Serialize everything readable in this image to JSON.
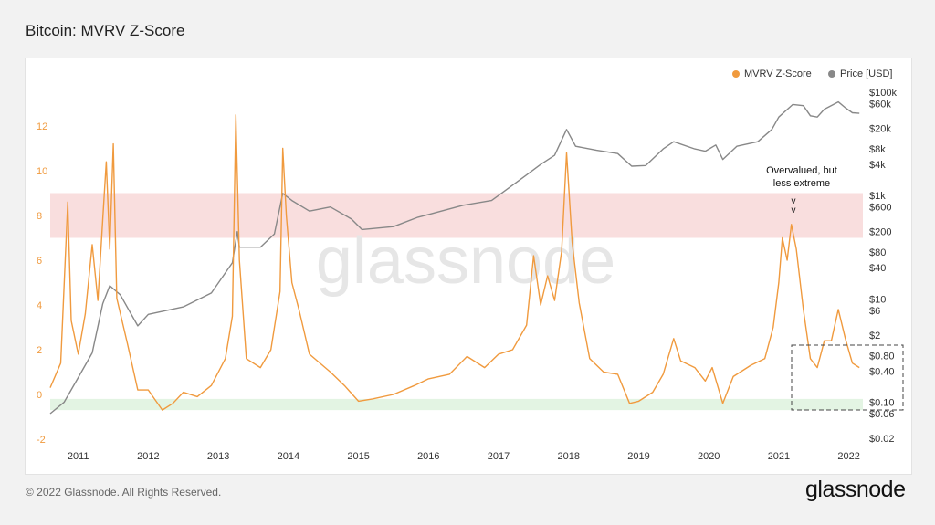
{
  "page": {
    "title": "Bitcoin: MVRV Z-Score",
    "footer": "© 2022 Glassnode. All Rights Reserved.",
    "brand": "glassnode",
    "watermark": "glassnode"
  },
  "colors": {
    "mvrv": "#f09a3e",
    "price": "#888888",
    "red_band": "#f9dede",
    "green_band": "#e3f4e3"
  },
  "chart_data": {
    "type": "line",
    "title": "Bitcoin: MVRV Z-Score",
    "legend_position": "top-right",
    "x_ticks": [
      "2011",
      "2012",
      "2013",
      "2014",
      "2015",
      "2016",
      "2017",
      "2018",
      "2019",
      "2020",
      "2021",
      "2022"
    ],
    "xlim": [
      "2010-08",
      "2022-03"
    ],
    "y_left": {
      "ticks": [
        -2,
        0,
        2,
        4,
        6,
        8,
        10,
        12
      ],
      "lim": [
        -2,
        13
      ]
    },
    "y_right": {
      "scale": "log",
      "ticks": [
        "$100k",
        "$60k",
        "$20k",
        "$8k",
        "$4k",
        "$1k",
        "$600",
        "$200",
        "$80",
        "$40",
        "$10",
        "$6",
        "$2",
        "$0.80",
        "$0.40",
        "$0.10",
        "$0.06",
        "$0.02"
      ]
    },
    "bands": [
      {
        "name": "overvalued",
        "from": 7,
        "to": 9
      },
      {
        "name": "undervalued",
        "from": -0.7,
        "to": -0.2
      }
    ],
    "annotation": {
      "text": [
        "Overvalued, but",
        "less extreme"
      ],
      "x": 2021.3,
      "y": 10.1,
      "arrow": "v v"
    },
    "series": [
      {
        "name": "MVRV Z-Score",
        "axis": "left",
        "points": [
          [
            2010.6,
            0.3
          ],
          [
            2010.75,
            1.4
          ],
          [
            2010.85,
            8.6
          ],
          [
            2010.9,
            3.3
          ],
          [
            2011.0,
            1.8
          ],
          [
            2011.1,
            3.6
          ],
          [
            2011.2,
            6.7
          ],
          [
            2011.28,
            4.2
          ],
          [
            2011.35,
            7.8
          ],
          [
            2011.4,
            10.4
          ],
          [
            2011.45,
            6.5
          ],
          [
            2011.5,
            11.2
          ],
          [
            2011.55,
            4.3
          ],
          [
            2011.7,
            2.3
          ],
          [
            2011.85,
            0.2
          ],
          [
            2012.0,
            0.2
          ],
          [
            2012.2,
            -0.7
          ],
          [
            2012.35,
            -0.4
          ],
          [
            2012.5,
            0.1
          ],
          [
            2012.7,
            -0.1
          ],
          [
            2012.9,
            0.4
          ],
          [
            2013.1,
            1.6
          ],
          [
            2013.2,
            3.5
          ],
          [
            2013.25,
            12.5
          ],
          [
            2013.3,
            6.0
          ],
          [
            2013.4,
            1.6
          ],
          [
            2013.6,
            1.2
          ],
          [
            2013.75,
            2.0
          ],
          [
            2013.88,
            4.6
          ],
          [
            2013.92,
            11.0
          ],
          [
            2013.97,
            8.0
          ],
          [
            2014.05,
            5.0
          ],
          [
            2014.15,
            3.8
          ],
          [
            2014.3,
            1.8
          ],
          [
            2014.6,
            1.0
          ],
          [
            2014.8,
            0.4
          ],
          [
            2015.0,
            -0.3
          ],
          [
            2015.2,
            -0.2
          ],
          [
            2015.5,
            0.0
          ],
          [
            2015.8,
            0.4
          ],
          [
            2016.0,
            0.7
          ],
          [
            2016.3,
            0.9
          ],
          [
            2016.55,
            1.7
          ],
          [
            2016.8,
            1.2
          ],
          [
            2017.0,
            1.8
          ],
          [
            2017.2,
            2.0
          ],
          [
            2017.4,
            3.1
          ],
          [
            2017.5,
            6.2
          ],
          [
            2017.6,
            4.0
          ],
          [
            2017.7,
            5.3
          ],
          [
            2017.8,
            4.2
          ],
          [
            2017.9,
            6.4
          ],
          [
            2017.97,
            10.8
          ],
          [
            2018.05,
            6.8
          ],
          [
            2018.15,
            4.1
          ],
          [
            2018.3,
            1.6
          ],
          [
            2018.5,
            1.0
          ],
          [
            2018.7,
            0.9
          ],
          [
            2018.87,
            -0.4
          ],
          [
            2019.0,
            -0.3
          ],
          [
            2019.2,
            0.1
          ],
          [
            2019.35,
            0.9
          ],
          [
            2019.5,
            2.5
          ],
          [
            2019.6,
            1.5
          ],
          [
            2019.8,
            1.2
          ],
          [
            2019.95,
            0.6
          ],
          [
            2020.05,
            1.2
          ],
          [
            2020.2,
            -0.4
          ],
          [
            2020.35,
            0.8
          ],
          [
            2020.6,
            1.3
          ],
          [
            2020.8,
            1.6
          ],
          [
            2020.92,
            3.0
          ],
          [
            2021.0,
            5.0
          ],
          [
            2021.05,
            7.0
          ],
          [
            2021.12,
            6.0
          ],
          [
            2021.18,
            7.6
          ],
          [
            2021.25,
            6.5
          ],
          [
            2021.35,
            3.8
          ],
          [
            2021.45,
            1.6
          ],
          [
            2021.55,
            1.2
          ],
          [
            2021.65,
            2.4
          ],
          [
            2021.75,
            2.4
          ],
          [
            2021.85,
            3.8
          ],
          [
            2021.95,
            2.5
          ],
          [
            2022.05,
            1.4
          ],
          [
            2022.15,
            1.2
          ]
        ]
      },
      {
        "name": "Price [USD]",
        "axis": "right",
        "points": [
          [
            2010.6,
            0.06
          ],
          [
            2010.8,
            0.1
          ],
          [
            2011.0,
            0.3
          ],
          [
            2011.2,
            0.9
          ],
          [
            2011.35,
            8
          ],
          [
            2011.45,
            18
          ],
          [
            2011.6,
            12
          ],
          [
            2011.85,
            3
          ],
          [
            2012.0,
            5
          ],
          [
            2012.5,
            7
          ],
          [
            2012.9,
            13
          ],
          [
            2013.2,
            50
          ],
          [
            2013.27,
            200
          ],
          [
            2013.3,
            100
          ],
          [
            2013.6,
            100
          ],
          [
            2013.8,
            180
          ],
          [
            2013.92,
            1100
          ],
          [
            2014.05,
            800
          ],
          [
            2014.3,
            500
          ],
          [
            2014.6,
            600
          ],
          [
            2014.9,
            350
          ],
          [
            2015.05,
            220
          ],
          [
            2015.5,
            250
          ],
          [
            2015.85,
            380
          ],
          [
            2016.0,
            430
          ],
          [
            2016.5,
            650
          ],
          [
            2016.9,
            800
          ],
          [
            2017.0,
            1000
          ],
          [
            2017.4,
            2500
          ],
          [
            2017.6,
            4000
          ],
          [
            2017.8,
            6000
          ],
          [
            2017.97,
            19000
          ],
          [
            2018.1,
            9000
          ],
          [
            2018.4,
            7500
          ],
          [
            2018.7,
            6500
          ],
          [
            2018.9,
            3700
          ],
          [
            2019.1,
            3800
          ],
          [
            2019.35,
            8000
          ],
          [
            2019.5,
            11000
          ],
          [
            2019.8,
            8000
          ],
          [
            2019.95,
            7200
          ],
          [
            2020.1,
            9500
          ],
          [
            2020.2,
            5000
          ],
          [
            2020.4,
            9000
          ],
          [
            2020.7,
            11000
          ],
          [
            2020.9,
            19000
          ],
          [
            2021.0,
            33000
          ],
          [
            2021.2,
            58000
          ],
          [
            2021.35,
            55000
          ],
          [
            2021.45,
            35000
          ],
          [
            2021.55,
            33000
          ],
          [
            2021.65,
            47000
          ],
          [
            2021.85,
            65000
          ],
          [
            2021.95,
            50000
          ],
          [
            2022.05,
            40000
          ],
          [
            2022.15,
            39000
          ]
        ]
      }
    ]
  }
}
